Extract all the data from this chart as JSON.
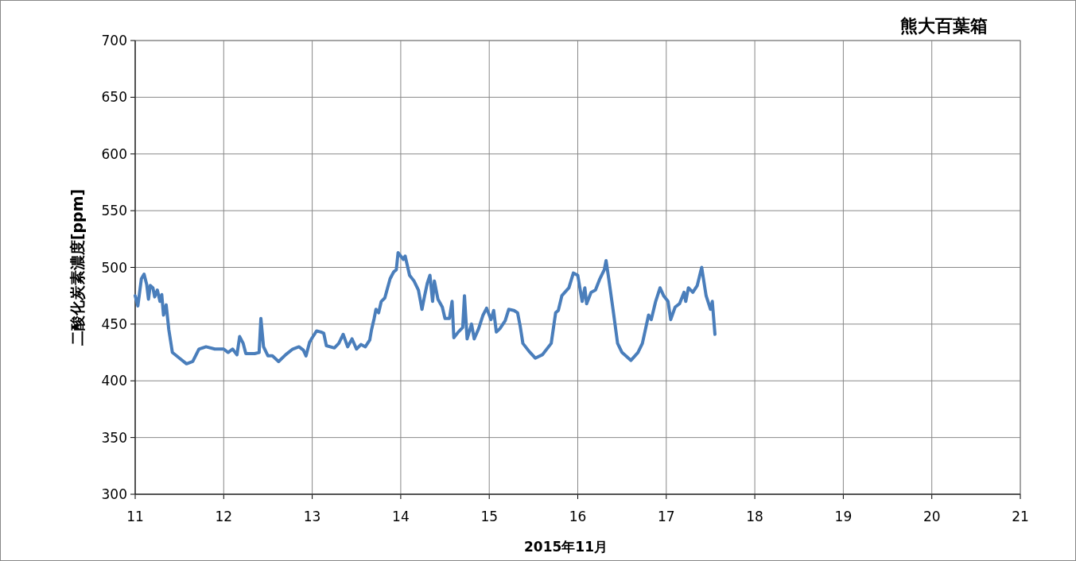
{
  "chart_data": {
    "type": "line",
    "title": "熊大百葉箱",
    "xlabel": "2015年11月",
    "ylabel": "二酸化炭素濃度[ppm]",
    "xlim": [
      11,
      21
    ],
    "xticks": [
      11,
      12,
      13,
      14,
      15,
      16,
      17,
      18,
      19,
      20,
      21
    ],
    "ylim": [
      300,
      700
    ],
    "yticks": [
      300,
      350,
      400,
      450,
      500,
      550,
      600,
      650,
      700
    ],
    "grid": true,
    "marker": "none",
    "line_style": "solid",
    "series": [
      {
        "color": "#4a7ebb",
        "x": [
          11.0,
          11.03,
          11.07,
          11.1,
          11.13,
          11.15,
          11.17,
          11.2,
          11.22,
          11.25,
          11.28,
          11.3,
          11.32,
          11.35,
          11.38,
          11.42,
          11.5,
          11.58,
          11.65,
          11.72,
          11.8,
          11.9,
          12.0,
          12.05,
          12.1,
          12.15,
          12.18,
          12.22,
          12.25,
          12.35,
          12.4,
          12.42,
          12.45,
          12.5,
          12.55,
          12.62,
          12.7,
          12.78,
          12.85,
          12.9,
          12.93,
          12.97,
          13.0,
          13.05,
          13.1,
          13.13,
          13.16,
          13.25,
          13.3,
          13.35,
          13.4,
          13.45,
          13.5,
          13.55,
          13.6,
          13.65,
          13.67,
          13.7,
          13.72,
          13.75,
          13.78,
          13.82,
          13.88,
          13.92,
          13.95,
          13.97,
          14.0,
          14.03,
          14.05,
          14.1,
          14.15,
          14.2,
          14.24,
          14.27,
          14.3,
          14.33,
          14.36,
          14.38,
          14.42,
          14.47,
          14.5,
          14.55,
          14.58,
          14.6,
          14.65,
          14.7,
          14.72,
          14.75,
          14.8,
          14.83,
          14.88,
          14.93,
          14.97,
          15.02,
          15.05,
          15.08,
          15.12,
          15.18,
          15.22,
          15.28,
          15.32,
          15.35,
          15.38,
          15.45,
          15.52,
          15.6,
          15.7,
          15.75,
          15.78,
          15.82,
          15.9,
          15.95,
          16.0,
          16.05,
          16.08,
          16.1,
          16.15,
          16.2,
          16.25,
          16.3,
          16.32,
          16.35,
          16.4,
          16.45,
          16.5,
          16.6,
          16.68,
          16.73,
          16.8,
          16.83,
          16.88,
          16.93,
          16.97,
          17.02,
          17.05,
          17.1,
          17.15,
          17.2,
          17.22,
          17.25,
          17.3,
          17.35,
          17.4,
          17.45,
          17.5,
          17.52,
          17.55
        ],
        "values": [
          475,
          466,
          490,
          494,
          485,
          472,
          484,
          482,
          474,
          480,
          470,
          476,
          458,
          467,
          445,
          425,
          420,
          415,
          417,
          428,
          430,
          428,
          428,
          425,
          428,
          423,
          439,
          433,
          424,
          424,
          425,
          455,
          430,
          422,
          422,
          417,
          423,
          428,
          430,
          427,
          422,
          434,
          438,
          444,
          443,
          442,
          431,
          429,
          433,
          441,
          430,
          437,
          428,
          432,
          430,
          436,
          445,
          455,
          463,
          460,
          470,
          473,
          490,
          496,
          498,
          513,
          510,
          507,
          510,
          493,
          488,
          480,
          463,
          475,
          486,
          493,
          470,
          488,
          472,
          465,
          455,
          455,
          470,
          438,
          443,
          447,
          475,
          437,
          450,
          437,
          446,
          458,
          464,
          454,
          462,
          443,
          446,
          453,
          463,
          462,
          460,
          448,
          433,
          426,
          420,
          423,
          433,
          460,
          462,
          475,
          482,
          495,
          493,
          470,
          482,
          468,
          478,
          480,
          490,
          498,
          506,
          490,
          462,
          433,
          425,
          418,
          425,
          433,
          458,
          454,
          470,
          482,
          475,
          470,
          454,
          465,
          468,
          478,
          470,
          482,
          478,
          484,
          500,
          475,
          463,
          470,
          441
        ]
      }
    ]
  }
}
